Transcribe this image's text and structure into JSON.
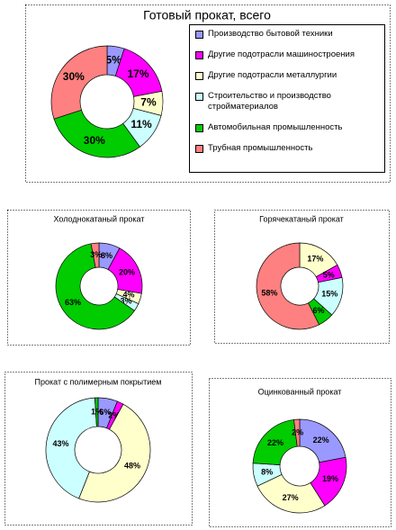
{
  "chart_data": [
    {
      "type": "donut",
      "title": "Готовый прокат, всего",
      "categories": [
        "Производство бытовой техники",
        "Другие подотрасли машиностроения",
        "Другие подотрасли металлургии",
        "Строительство и производство стройматериалов",
        "Автомобильная промышленность",
        "Трубная промышленность"
      ],
      "values": [
        5,
        17,
        7,
        11,
        30,
        30
      ],
      "value_labels": [
        "5%",
        "17%",
        "7%",
        "11%",
        "30%",
        "30%"
      ],
      "colors": [
        "#9999ff",
        "#ff00ff",
        "#ffffcc",
        "#ccffff",
        "#00cc00",
        "#ff8080"
      ],
      "legend": "right"
    },
    {
      "type": "donut",
      "title": "Холоднокатаный прокат",
      "values": [
        8,
        20,
        4,
        3,
        63,
        3
      ],
      "value_labels": [
        "8%",
        "20%",
        "4%",
        "3%",
        "63%",
        "3%"
      ],
      "colors": [
        "#9999ff",
        "#ff00ff",
        "#ffffcc",
        "#ccffff",
        "#00cc00",
        "#ff8080"
      ]
    },
    {
      "type": "donut",
      "title": "Горячекатаный прокат",
      "values": [
        17,
        5,
        15,
        6,
        58
      ],
      "value_labels": [
        "17%",
        "5%",
        "15%",
        "6%",
        "58%"
      ],
      "colors": [
        "#ffffcc",
        "#ff00ff",
        "#ccffff",
        "#00cc00",
        "#ff8080"
      ]
    },
    {
      "type": "donut",
      "title": "Прокат с полимерным покрытием",
      "values": [
        6,
        2,
        48,
        43,
        1
      ],
      "value_labels": [
        "6%",
        "2%",
        "48%",
        "43%",
        "1%"
      ],
      "colors": [
        "#9999ff",
        "#ff00ff",
        "#ffffcc",
        "#ccffff",
        "#00cc00"
      ]
    },
    {
      "type": "donut",
      "title": "Оцинкованный прокат",
      "values": [
        22,
        19,
        27,
        8,
        22,
        2
      ],
      "value_labels": [
        "22%",
        "19%",
        "27%",
        "8%",
        "22%",
        "2%"
      ],
      "colors": [
        "#9999ff",
        "#ff00ff",
        "#ffffcc",
        "#ccffff",
        "#00cc00",
        "#ff8080"
      ]
    }
  ]
}
